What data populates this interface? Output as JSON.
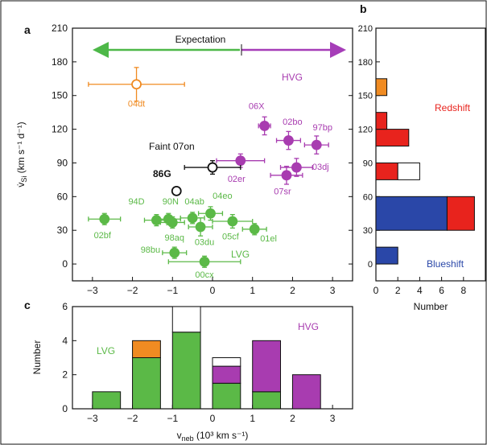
{
  "colors": {
    "lvg": "#5bb947",
    "hvg": "#a83cb0",
    "orange": "#f08b22",
    "black": "#111111",
    "red": "#e8231d",
    "blue": "#2a47a8",
    "expectation_green": "#4db848",
    "expectation_purple": "#a63db8"
  },
  "panels": {
    "a": {
      "label": "a"
    },
    "b": {
      "label": "b"
    },
    "c": {
      "label": "c"
    }
  },
  "chart_data": [
    {
      "panel": "a",
      "type": "scatter",
      "xlabel": "v_neb (10³ km s⁻¹)",
      "ylabel": "v̇_Si (km s⁻¹ d⁻¹)",
      "ylabel_main": "v̇",
      "ylabel_sub": "Si",
      "ylabel_units": "(km s⁻¹ d⁻¹)",
      "xlim": [
        -3.5,
        3.5
      ],
      "ylim": [
        -15,
        210
      ],
      "xticks": [
        "-3",
        "-2",
        "-1",
        "0",
        "1",
        "2",
        "3"
      ],
      "yticks": [
        "0",
        "30",
        "60",
        "90",
        "120",
        "150",
        "180",
        "210"
      ],
      "annotations": {
        "expectation": "Expectation",
        "hvg": "HVG",
        "lvg": "LVG",
        "faint": "Faint 07on",
        "peculiar": "86G"
      },
      "points": [
        {
          "label": "04dt",
          "x": -1.9,
          "y": 160,
          "xerr": 1.2,
          "yerr": 15,
          "group": "orange",
          "hollow": true
        },
        {
          "label": "06X",
          "x": 1.3,
          "y": 123,
          "xerr": 0.15,
          "yerr": 8,
          "group": "hvg",
          "hollow": false
        },
        {
          "label": "02bo",
          "x": 1.9,
          "y": 110,
          "xerr": 0.3,
          "yerr": 8,
          "group": "hvg",
          "hollow": false
        },
        {
          "label": "97bp",
          "x": 2.6,
          "y": 106,
          "xerr": 0.3,
          "yerr": 8,
          "group": "hvg",
          "hollow": false
        },
        {
          "label": "02er",
          "x": 0.7,
          "y": 92,
          "xerr": 0.6,
          "yerr": 6,
          "group": "hvg",
          "hollow": false
        },
        {
          "label": "03dj",
          "x": 2.1,
          "y": 86,
          "xerr": 0.4,
          "yerr": 8,
          "group": "hvg",
          "hollow": false
        },
        {
          "label": "07sr",
          "x": 1.85,
          "y": 79,
          "xerr": 0.4,
          "yerr": 8,
          "group": "hvg",
          "hollow": false
        },
        {
          "label": "Faint 07on",
          "x": 0.0,
          "y": 86,
          "xerr": 0.7,
          "yerr": 6,
          "group": "black",
          "hollow": true
        },
        {
          "label": "86G",
          "x": -0.9,
          "y": 65,
          "xerr": 0,
          "yerr": 0,
          "group": "black",
          "hollow": true
        },
        {
          "label": "04eo",
          "x": -0.05,
          "y": 45,
          "xerr": 0.3,
          "yerr": 6,
          "group": "lvg",
          "hollow": false
        },
        {
          "label": "04ab",
          "x": -0.5,
          "y": 41,
          "xerr": 0.3,
          "yerr": 5,
          "group": "lvg",
          "hollow": false
        },
        {
          "label": "90N",
          "x": -1.1,
          "y": 40,
          "xerr": 0.3,
          "yerr": 5,
          "group": "lvg",
          "hollow": false
        },
        {
          "label": "94D",
          "x": -1.4,
          "y": 39,
          "xerr": 0.3,
          "yerr": 5,
          "group": "lvg",
          "hollow": false
        },
        {
          "label": "98aq",
          "x": -1.0,
          "y": 37,
          "xerr": 0.3,
          "yerr": 5,
          "group": "lvg",
          "hollow": false
        },
        {
          "label": "03du",
          "x": -0.3,
          "y": 33,
          "xerr": 0.3,
          "yerr": 8,
          "group": "lvg",
          "hollow": false
        },
        {
          "label": "05cf",
          "x": 0.5,
          "y": 38,
          "xerr": 0.5,
          "yerr": 6,
          "group": "lvg",
          "hollow": false
        },
        {
          "label": "01el",
          "x": 1.05,
          "y": 31,
          "xerr": 0.3,
          "yerr": 5,
          "group": "lvg",
          "hollow": false
        },
        {
          "label": "02bf",
          "x": -2.7,
          "y": 40,
          "xerr": 0.4,
          "yerr": 5,
          "group": "lvg",
          "hollow": false
        },
        {
          "label": "98bu",
          "x": -0.95,
          "y": 10,
          "xerr": 0.3,
          "yerr": 5,
          "group": "lvg",
          "hollow": false
        },
        {
          "label": "00cx",
          "x": -0.2,
          "y": 2,
          "xerr": 0.9,
          "yerr": 5,
          "group": "lvg",
          "hollow": false
        }
      ],
      "point_labels": [
        {
          "text": "04dt",
          "group": "orange",
          "x": -1.9,
          "y": 140
        },
        {
          "text": "06X",
          "group": "hvg",
          "x": 1.1,
          "y": 138
        },
        {
          "text": "02bo",
          "group": "hvg",
          "x": 2.0,
          "y": 124
        },
        {
          "text": "97bp",
          "group": "hvg",
          "x": 2.75,
          "y": 119
        },
        {
          "text": "02er",
          "group": "hvg",
          "x": 0.6,
          "y": 73
        },
        {
          "text": "03dj",
          "group": "hvg",
          "x": 2.7,
          "y": 84
        },
        {
          "text": "07sr",
          "group": "hvg",
          "x": 1.75,
          "y": 62
        },
        {
          "text": "04eo",
          "group": "lvg",
          "x": 0.25,
          "y": 58
        },
        {
          "text": "04ab",
          "group": "lvg",
          "x": -0.45,
          "y": 53
        },
        {
          "text": "90N",
          "group": "lvg",
          "x": -1.05,
          "y": 53
        },
        {
          "text": "94D",
          "group": "lvg",
          "x": -1.9,
          "y": 53
        },
        {
          "text": "98aq",
          "group": "lvg",
          "x": -0.95,
          "y": 21
        },
        {
          "text": "03du",
          "group": "lvg",
          "x": -0.2,
          "y": 17
        },
        {
          "text": "05cf",
          "group": "lvg",
          "x": 0.45,
          "y": 22
        },
        {
          "text": "01el",
          "group": "lvg",
          "x": 1.4,
          "y": 20
        },
        {
          "text": "02bf",
          "group": "lvg",
          "x": -2.75,
          "y": 23
        },
        {
          "text": "98bu",
          "group": "lvg",
          "x": -1.55,
          "y": 10
        },
        {
          "text": "00cx",
          "group": "lvg",
          "x": -0.2,
          "y": -12
        }
      ]
    },
    {
      "panel": "b",
      "type": "bar",
      "orientation": "horizontal",
      "xlabel": "Number",
      "xlim": [
        0,
        10
      ],
      "xticks": [
        "0",
        "2",
        "4",
        "6",
        "8"
      ],
      "ylim": [
        -15,
        210
      ],
      "yticks": [
        "0",
        "30",
        "60",
        "90",
        "120",
        "150",
        "180",
        "210"
      ],
      "annotations": {
        "redshift": "Redshift",
        "blueshift": "Blueshift"
      },
      "bins": [
        {
          "range": [
            0,
            15
          ],
          "segments": [
            {
              "color": "blue",
              "value": 2
            }
          ]
        },
        {
          "range": [
            30,
            60
          ],
          "segments": [
            {
              "color": "blue",
              "value": 6.5
            },
            {
              "color": "red",
              "value": 2.5
            }
          ]
        },
        {
          "range": [
            75,
            90
          ],
          "segments": [
            {
              "color": "red",
              "value": 2
            },
            {
              "color": "white",
              "value": 2
            }
          ]
        },
        {
          "range": [
            105,
            120
          ],
          "segments": [
            {
              "color": "red",
              "value": 3
            }
          ]
        },
        {
          "range": [
            120,
            135
          ],
          "segments": [
            {
              "color": "red",
              "value": 1
            }
          ]
        },
        {
          "range": [
            150,
            165
          ],
          "segments": [
            {
              "color": "orange",
              "value": 1
            }
          ]
        }
      ]
    },
    {
      "panel": "c",
      "type": "bar",
      "xlabel_main": "v",
      "xlabel_sub": "neb",
      "xlabel_units": "(10³ km s⁻¹)",
      "ylabel": "Number",
      "xlim": [
        -3.5,
        3.5
      ],
      "ylim": [
        0,
        6
      ],
      "xticks": [
        "-3",
        "-2",
        "-1",
        "0",
        "1",
        "2",
        "3"
      ],
      "yticks": [
        "0",
        "2",
        "4",
        "6"
      ],
      "annotations": {
        "lvg": "LVG",
        "hvg": "HVG"
      },
      "bins": [
        {
          "range": [
            -3,
            -2.3
          ],
          "segments": [
            {
              "color": "lvg",
              "value": 1
            }
          ]
        },
        {
          "range": [
            -2,
            -1.3
          ],
          "segments": [
            {
              "color": "lvg",
              "value": 3
            },
            {
              "color": "orange",
              "value": 1
            }
          ]
        },
        {
          "range": [
            -1,
            -0.3
          ],
          "segments": [
            {
              "color": "lvg",
              "value": 4.5
            },
            {
              "color": "white",
              "value": 1.5
            }
          ]
        },
        {
          "range": [
            0,
            0.7
          ],
          "segments": [
            {
              "color": "lvg",
              "value": 1.5
            },
            {
              "color": "hvg",
              "value": 1
            },
            {
              "color": "white",
              "value": 0.5
            }
          ]
        },
        {
          "range": [
            1,
            1.7
          ],
          "segments": [
            {
              "color": "lvg",
              "value": 1
            },
            {
              "color": "hvg",
              "value": 3
            }
          ]
        },
        {
          "range": [
            2,
            2.7
          ],
          "segments": [
            {
              "color": "hvg",
              "value": 2
            }
          ]
        }
      ]
    }
  ]
}
